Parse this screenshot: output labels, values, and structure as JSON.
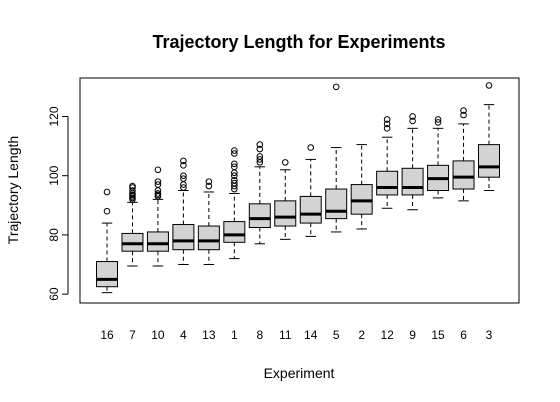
{
  "chart_data": {
    "type": "boxplot",
    "title": "Trajectory Length for Experiments",
    "xlabel": "Experiment",
    "ylabel": "Trajectory Length",
    "ylim": [
      57,
      133
    ],
    "yticks": [
      60,
      80,
      100,
      120
    ],
    "grid": false,
    "legend": "none",
    "box_fill": "#d3d3d3",
    "categories": [
      "16",
      "7",
      "10",
      "4",
      "13",
      "1",
      "8",
      "11",
      "14",
      "5",
      "2",
      "12",
      "9",
      "15",
      "6",
      "3"
    ],
    "boxes": [
      {
        "label": "16",
        "whisker_low": 60.5,
        "q1": 62.5,
        "median": 65,
        "q3": 71,
        "whisker_high": 84,
        "outliers": [
          88,
          94.5
        ]
      },
      {
        "label": "7",
        "whisker_low": 69.5,
        "q1": 74.5,
        "median": 77,
        "q3": 80.5,
        "whisker_high": 91,
        "outliers": [
          92,
          92.5,
          93,
          93.5,
          94,
          95,
          96,
          96.5
        ]
      },
      {
        "label": "10",
        "whisker_low": 69.5,
        "q1": 74.5,
        "median": 77,
        "q3": 81,
        "whisker_high": 92,
        "outliers": [
          93,
          93.5,
          94,
          95,
          97,
          98,
          102
        ]
      },
      {
        "label": "4",
        "whisker_low": 70,
        "q1": 75,
        "median": 78,
        "q3": 83.5,
        "whisker_high": 95,
        "outliers": [
          96,
          97,
          99,
          100,
          103.5,
          105
        ]
      },
      {
        "label": "13",
        "whisker_low": 70,
        "q1": 75,
        "median": 78,
        "q3": 83,
        "whisker_high": 94.5,
        "outliers": [
          96.5,
          98
        ]
      },
      {
        "label": "1",
        "whisker_low": 72,
        "q1": 77.5,
        "median": 80,
        "q3": 84.5,
        "whisker_high": 94,
        "outliers": [
          95.5,
          96.5,
          97.5,
          98.5,
          100,
          101,
          103,
          104,
          107.5,
          108.5
        ]
      },
      {
        "label": "8",
        "whisker_low": 77,
        "q1": 82.5,
        "median": 85.5,
        "q3": 90.5,
        "whisker_high": 103,
        "outliers": [
          104.5,
          105.5,
          106.5,
          109,
          110.5
        ]
      },
      {
        "label": "11",
        "whisker_low": 78.5,
        "q1": 83,
        "median": 86,
        "q3": 91.5,
        "whisker_high": 102,
        "outliers": [
          104.5
        ]
      },
      {
        "label": "14",
        "whisker_low": 79.5,
        "q1": 84,
        "median": 87,
        "q3": 93,
        "whisker_high": 105.5,
        "outliers": [
          109.5
        ]
      },
      {
        "label": "5",
        "whisker_low": 81,
        "q1": 85.5,
        "median": 88,
        "q3": 95.5,
        "whisker_high": 109.5,
        "outliers": [
          130
        ]
      },
      {
        "label": "2",
        "whisker_low": 82,
        "q1": 87,
        "median": 91.5,
        "q3": 97,
        "whisker_high": 110.5,
        "outliers": []
      },
      {
        "label": "12",
        "whisker_low": 89,
        "q1": 93.5,
        "median": 96,
        "q3": 101.5,
        "whisker_high": 113,
        "outliers": [
          116,
          117.5,
          119
        ]
      },
      {
        "label": "9",
        "whisker_low": 88.5,
        "q1": 93.5,
        "median": 96,
        "q3": 102.5,
        "whisker_high": 116,
        "outliers": [
          118.5,
          120
        ]
      },
      {
        "label": "15",
        "whisker_low": 92.5,
        "q1": 95,
        "median": 99,
        "q3": 103.5,
        "whisker_high": 116,
        "outliers": [
          118,
          119
        ]
      },
      {
        "label": "6",
        "whisker_low": 91.5,
        "q1": 95.5,
        "median": 99.5,
        "q3": 105,
        "whisker_high": 117.5,
        "outliers": [
          120.5,
          122
        ]
      },
      {
        "label": "3",
        "whisker_low": 95,
        "q1": 99.5,
        "median": 103,
        "q3": 110.5,
        "whisker_high": 124,
        "outliers": [
          130.5
        ]
      }
    ]
  }
}
